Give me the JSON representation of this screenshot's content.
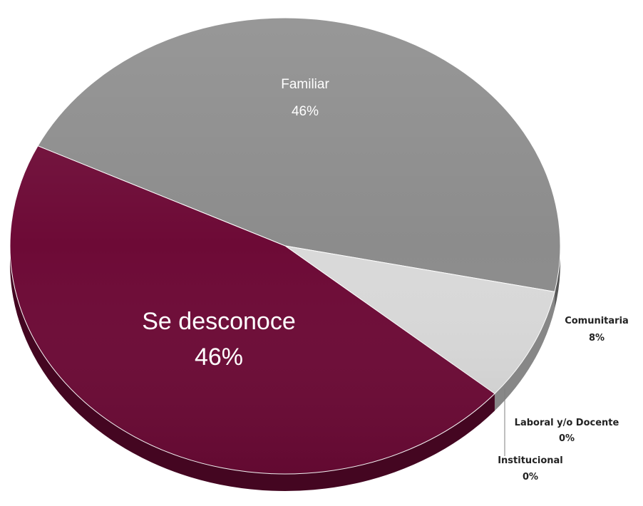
{
  "chart_data": {
    "type": "pie",
    "title": "",
    "slices": [
      {
        "label": "Familiar",
        "value": 46,
        "value_label": "46%",
        "color": "#8c8c8c"
      },
      {
        "label": "Comunitaria",
        "value": 8,
        "value_label": "8%",
        "color": "#d9d9d9"
      },
      {
        "label": "Laboral y/o Docente",
        "value": 0,
        "value_label": "0%",
        "color": "#a6a6a6"
      },
      {
        "label": "Institucional",
        "value": 0,
        "value_label": "0%",
        "color": "#595959"
      },
      {
        "label": "Se desconoce",
        "value": 46,
        "value_label": "46%",
        "color": "#6d0a36"
      }
    ],
    "legend": "none",
    "style": "3d"
  }
}
